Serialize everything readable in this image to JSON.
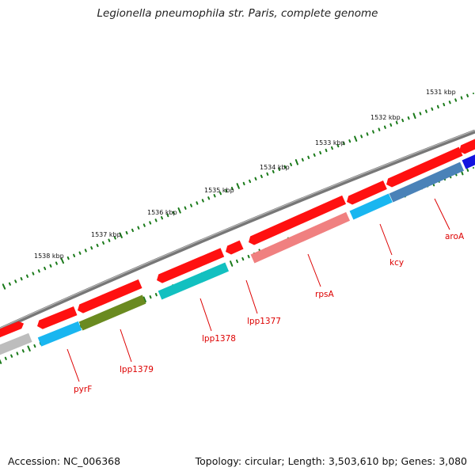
{
  "title": "Legionella pneumophila str. Paris, complete genome",
  "accession": "Accession: NC_006368",
  "topology": "Topology: circular; Length: 3,503,610 bp; Genes: 3,080",
  "colors": {
    "backbone": "#7a7a7a",
    "gene_forward": "#ff1010",
    "tick": "#1a7a1a",
    "label": "#dd0000"
  },
  "kbp_labels": [
    "1531 kbp",
    "1532 kbp",
    "1533 kbp",
    "1534 kbp",
    "1535 kbp",
    "1536 kbp",
    "1537 kbp",
    "1538 kbp"
  ],
  "gene_labels": [
    "aroA",
    "kcy",
    "rpsA",
    "lpp1377",
    "lpp1378",
    "lpp1379",
    "pyrF"
  ]
}
